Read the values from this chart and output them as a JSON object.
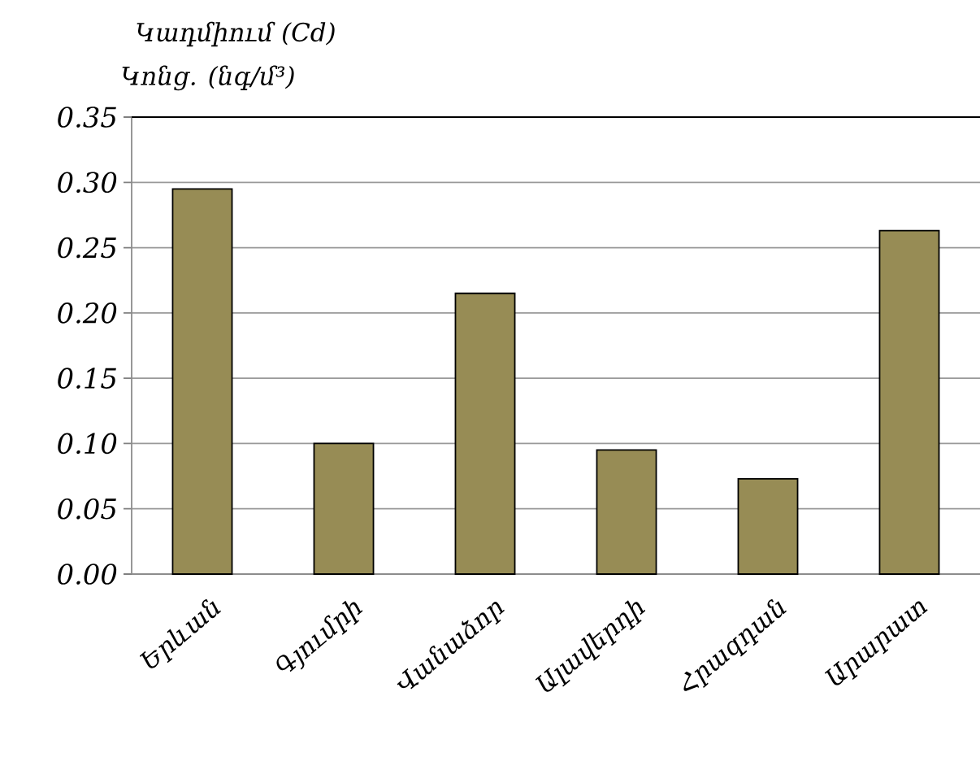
{
  "chart_data": {
    "type": "bar",
    "title": "Կադմիում  (Cd)",
    "ylabel": "Կոնց. (նգ/մ³)",
    "categories": [
      "Երևան",
      "Գյումրի",
      "Վանաձոր",
      "Ալավերդի",
      "Հրազդան",
      "Արարատ"
    ],
    "values": [
      0.295,
      0.1,
      0.215,
      0.095,
      0.073,
      0.263
    ],
    "color": "#978c55",
    "ylim": [
      0,
      0.35
    ],
    "yticks": [
      {
        "value": 0,
        "label": "0.00"
      },
      {
        "value": 0.05,
        "label": "0.05"
      },
      {
        "value": 0.1,
        "label": "0.10"
      },
      {
        "value": 0.15,
        "label": "0.15"
      },
      {
        "value": 0.2,
        "label": "0.20"
      },
      {
        "value": 0.25,
        "label": "0.25"
      },
      {
        "value": 0.3,
        "label": "0.30"
      },
      {
        "value": 0.35,
        "label": "0.35"
      }
    ],
    "grid": "y"
  }
}
